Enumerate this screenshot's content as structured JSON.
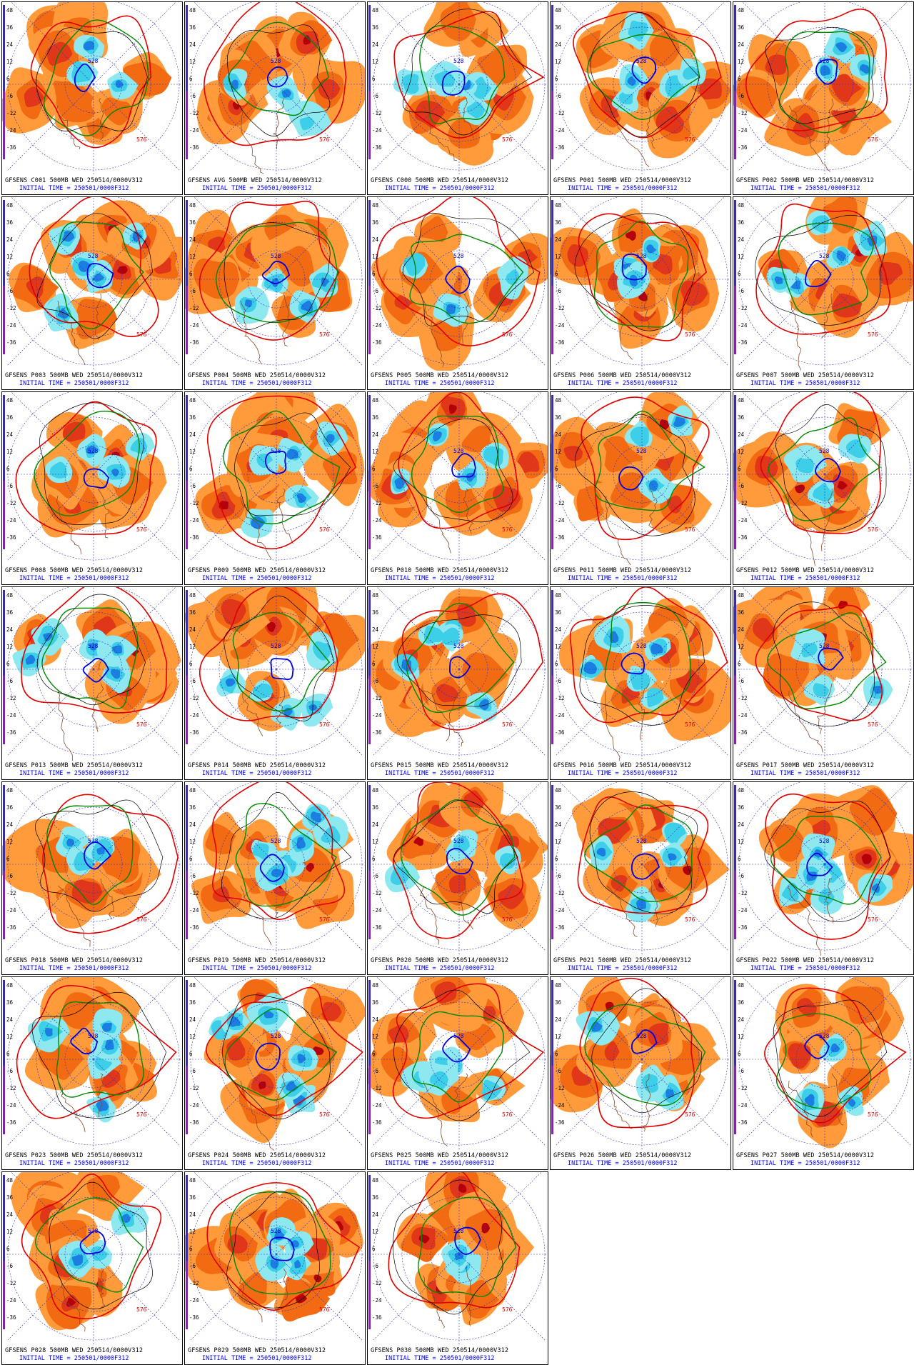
{
  "colors": {
    "positive_light": "#ff9b3a",
    "positive_mid": "#f26a12",
    "positive_strong": "#e0361a",
    "positive_max": "#b3000a",
    "negative_light": "#8ee8f0",
    "negative_mid": "#3ecfe8",
    "negative_strong": "#1a7fe0",
    "negative_max": "#0a28b0",
    "contour_red": "#e00000",
    "contour_green": "#008800",
    "contour_blue": "#0000dd",
    "contour_black": "#000000",
    "coast": "#8b4a2a",
    "latlon": "#3333cc",
    "caption_blue": "#0000ee"
  },
  "scale_ticks": [
    "48",
    "36",
    "24",
    "12",
    "6",
    "-6",
    "-12",
    "-24",
    "-36"
  ],
  "contour_labels": [
    "576",
    "528"
  ],
  "init_time": "INITIAL TIME = 250501/0000F312",
  "panels": [
    {
      "title": "GFSENS C001 500MB WED 250514/0000V312"
    },
    {
      "title": "GFSENS AVG 500MB WED 250514/0000V312"
    },
    {
      "title": "GFSENS C000 500MB WED 250514/0000V312"
    },
    {
      "title": "GFSENS P001 500MB WED 250514/0000V312"
    },
    {
      "title": "GFSENS P002 500MB WED 250514/0000V312"
    },
    {
      "title": "GFSENS P003 500MB WED 250514/0000V312"
    },
    {
      "title": "GFSENS P004 500MB WED 250514/0000V312"
    },
    {
      "title": "GFSENS P005 500MB WED 250514/0000V312"
    },
    {
      "title": "GFSENS P006 500MB WED 250514/0000V312"
    },
    {
      "title": "GFSENS P007 500MB WED 250514/0000V312"
    },
    {
      "title": "GFSENS P008 500MB WED 250514/0000V312"
    },
    {
      "title": "GFSENS P009 500MB WED 250514/0000V312"
    },
    {
      "title": "GFSENS P010 500MB WED 250514/0000V312"
    },
    {
      "title": "GFSENS P011 500MB WED 250514/0000V312"
    },
    {
      "title": "GFSENS P012 500MB WED 250514/0000V312"
    },
    {
      "title": "GFSENS P013 500MB WED 250514/0000V312"
    },
    {
      "title": "GFSENS P014 500MB WED 250514/0000V312"
    },
    {
      "title": "GFSENS P015 500MB WED 250514/0000V312"
    },
    {
      "title": "GFSENS P016 500MB WED 250514/0000V312"
    },
    {
      "title": "GFSENS P017 500MB WED 250514/0000V312"
    },
    {
      "title": "GFSENS P018 500MB WED 250514/0000V312"
    },
    {
      "title": "GFSENS P019 500MB WED 250514/0000V312"
    },
    {
      "title": "GFSENS P020 500MB WED 250514/0000V312"
    },
    {
      "title": "GFSENS P021 500MB WED 250514/0000V312"
    },
    {
      "title": "GFSENS P022 500MB WED 250514/0000V312"
    },
    {
      "title": "GFSENS P023 500MB WED 250514/0000V312"
    },
    {
      "title": "GFSENS P024 500MB WED 250514/0000V312"
    },
    {
      "title": "GFSENS P025 500MB WED 250514/0000V312"
    },
    {
      "title": "GFSENS P026 500MB WED 250514/0000V312"
    },
    {
      "title": "GFSENS P027 500MB WED 250514/0000V312"
    },
    {
      "title": "GFSENS P028 500MB WED 250514/0000V312"
    },
    {
      "title": "GFSENS P029 500MB WED 250514/0000V312"
    },
    {
      "title": "GFSENS P030 500MB WED 250514/0000V312"
    }
  ]
}
